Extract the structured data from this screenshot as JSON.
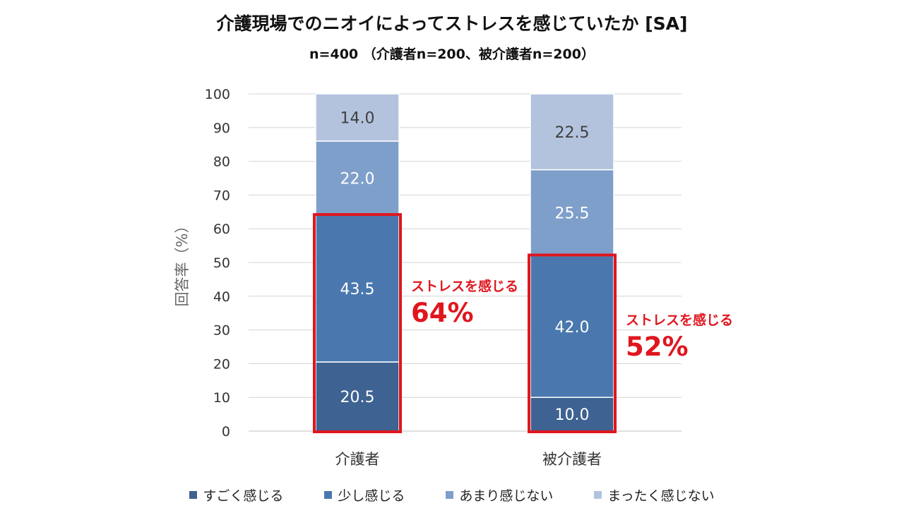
{
  "chart_data": {
    "type": "bar",
    "stacked": true,
    "title": "介護現場でのニオイによってストレスを感じていたか [SA]",
    "subtitle": "n=400 （介護者n=200、被介護者n=200）",
    "ylabel": "回答率（%）",
    "ylim": [
      0,
      100
    ],
    "yticks": [
      0,
      10,
      20,
      30,
      40,
      50,
      60,
      70,
      80,
      90,
      100
    ],
    "grid": true,
    "legend_position": "bottom",
    "categories": [
      "介護者",
      "被介護者"
    ],
    "series": [
      {
        "name": "すごく感じる",
        "values": [
          20.5,
          10.0
        ],
        "labels": [
          "20.5",
          "10.0"
        ],
        "color": "#3e6291"
      },
      {
        "name": "少し感じる",
        "values": [
          43.5,
          42.0
        ],
        "labels": [
          "43.5",
          "42.0"
        ],
        "color": "#4a78ae"
      },
      {
        "name": "あまり感じない",
        "values": [
          22.0,
          25.5
        ],
        "labels": [
          "22.0",
          "25.5"
        ],
        "color": "#7f9fcb"
      },
      {
        "name": "まったく感じない",
        "values": [
          14.0,
          22.5
        ],
        "labels": [
          "14.0",
          "22.5"
        ],
        "color": "#b3c3de"
      }
    ],
    "annotations": [
      {
        "category": "介護者",
        "label": "ストレスを感じる",
        "value_text": "64%",
        "total": 64
      },
      {
        "category": "被介護者",
        "label": "ストレスを感じる",
        "value_text": "52%",
        "total": 52
      }
    ],
    "highlight_color": "#e0161e"
  }
}
